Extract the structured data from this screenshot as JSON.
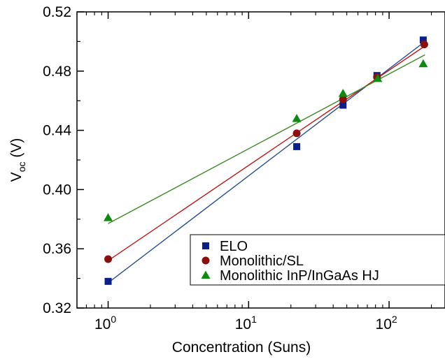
{
  "chart_data": {
    "type": "scatter",
    "title": "",
    "xlabel": "Concentration (Suns)",
    "ylabel": {
      "main": "V",
      "sub": "oc",
      "unit": " (V)"
    },
    "xscale": "log",
    "xlim": [
      0.6,
      250
    ],
    "ylim": [
      0.32,
      0.52
    ],
    "xticks": [
      {
        "value": 1,
        "base": "10",
        "exp": "0"
      },
      {
        "value": 10,
        "base": "10",
        "exp": "1"
      },
      {
        "value": 100,
        "base": "10",
        "exp": "2"
      }
    ],
    "yticks": [
      {
        "value": 0.32,
        "label": "0.32"
      },
      {
        "value": 0.36,
        "label": "0.36"
      },
      {
        "value": 0.4,
        "label": "0.40"
      },
      {
        "value": 0.44,
        "label": "0.44"
      },
      {
        "value": 0.48,
        "label": "0.48"
      },
      {
        "value": 0.52,
        "label": "0.52"
      }
    ],
    "grid": false,
    "legend_position": "bottom-right",
    "series": [
      {
        "name": "ELO",
        "marker": "square",
        "color": "#0b1f8a",
        "line_color": "#2a4f8f",
        "x": [
          1,
          22,
          47,
          82,
          175
        ],
        "y": [
          0.338,
          0.429,
          0.457,
          0.477,
          0.501
        ],
        "fit": {
          "x": [
            1,
            180
          ],
          "y": [
            0.337,
            0.5
          ]
        }
      },
      {
        "name": "Monolithic/SL",
        "marker": "circle",
        "color": "#8b0f0f",
        "line_color": "#c01818",
        "x": [
          1,
          22,
          47,
          82,
          178
        ],
        "y": [
          0.353,
          0.438,
          0.461,
          0.476,
          0.498
        ],
        "fit": {
          "x": [
            1,
            180
          ],
          "y": [
            0.352,
            0.497
          ]
        }
      },
      {
        "name": "Monolithic InP/InGaAs HJ",
        "marker": "triangle",
        "color": "#0e8a0e",
        "line_color": "#3b8a27",
        "x": [
          1,
          22,
          47,
          83,
          175
        ],
        "y": [
          0.381,
          0.448,
          0.465,
          0.475,
          0.485
        ],
        "fit": {
          "x": [
            1,
            180
          ],
          "y": [
            0.377,
            0.491
          ]
        }
      }
    ]
  }
}
